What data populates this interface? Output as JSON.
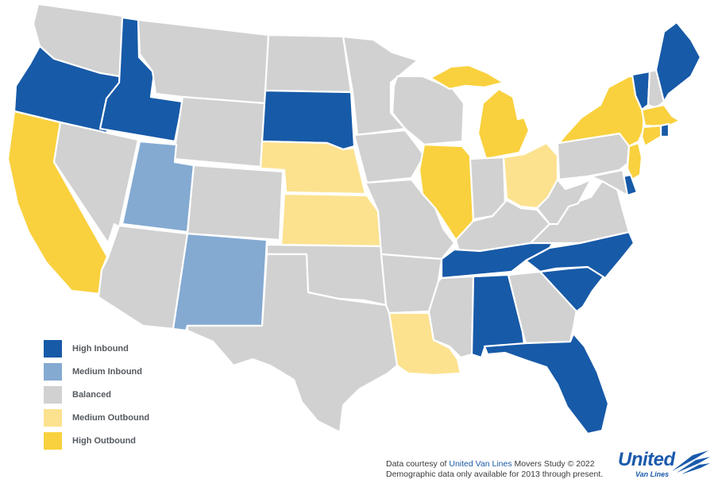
{
  "colors": {
    "high_inbound": "#175aa8",
    "medium_inbound": "#84aad2",
    "balanced": "#d1d1d1",
    "medium_outbound": "#fce28f",
    "high_outbound": "#f9d13e"
  },
  "legend": [
    {
      "key": "high_inbound",
      "label": "High Inbound"
    },
    {
      "key": "medium_inbound",
      "label": "Medium Inbound"
    },
    {
      "key": "balanced",
      "label": "Balanced"
    },
    {
      "key": "medium_outbound",
      "label": "Medium Outbound"
    },
    {
      "key": "high_outbound",
      "label": "High Outbound"
    }
  ],
  "states": {
    "WA": "balanced",
    "OR": "high_inbound",
    "CA": "high_outbound",
    "ID": "high_inbound",
    "NV": "balanced",
    "MT": "balanced",
    "WY": "balanced",
    "UT": "medium_inbound",
    "AZ": "balanced",
    "CO": "balanced",
    "NM": "medium_inbound",
    "ND": "balanced",
    "SD": "high_inbound",
    "NE": "medium_outbound",
    "KS": "medium_outbound",
    "OK": "balanced",
    "TX": "balanced",
    "MN": "balanced",
    "IA": "balanced",
    "MO": "balanced",
    "AR": "balanced",
    "LA": "medium_outbound",
    "WI": "balanced",
    "IL": "high_outbound",
    "MI": "high_outbound",
    "IN": "balanced",
    "OH": "medium_outbound",
    "KY": "balanced",
    "TN": "high_inbound",
    "MS": "balanced",
    "AL": "high_inbound",
    "GA": "balanced",
    "FL": "high_inbound",
    "SC": "high_inbound",
    "NC": "high_inbound",
    "VA": "balanced",
    "WV": "balanced",
    "PA": "balanced",
    "NY": "high_outbound",
    "VT": "high_inbound",
    "NH": "balanced",
    "ME": "high_inbound",
    "MA": "high_outbound",
    "RI": "high_inbound",
    "CT": "high_outbound",
    "NJ": "high_outbound",
    "DE": "high_inbound",
    "MD": "balanced"
  },
  "credits": {
    "line1_prefix": "Data courtesy of ",
    "line1_link": "United Van Lines",
    "line1_suffix": " Movers Study © 2022",
    "line2": "Demographic data only available for 2013 through present."
  },
  "logo": {
    "word": "United",
    "sub": "Van Lines"
  }
}
